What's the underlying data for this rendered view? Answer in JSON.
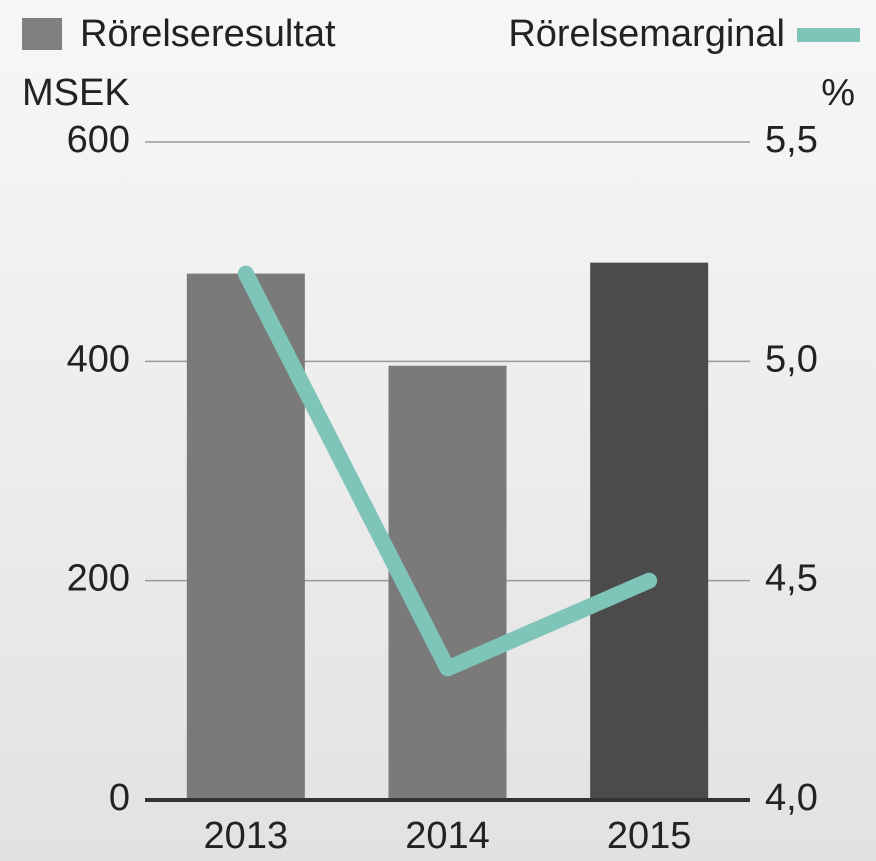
{
  "chart_data": {
    "type": "bar",
    "categories": [
      "2013",
      "2014",
      "2015"
    ],
    "y_label": "MSEK",
    "y2_label": "%",
    "series": [
      {
        "name": "Rörelseresultat",
        "type": "bar",
        "color": "#808080",
        "colors": [
          "#7a7a7a",
          "#7a7a7a",
          "#4b4b4b"
        ],
        "values": [
          480,
          396,
          490
        ]
      },
      {
        "name": "Rörelsemarginal",
        "type": "line",
        "axis": "y2",
        "color": "#7fc4b8",
        "values": [
          5.2,
          4.3,
          4.5
        ]
      }
    ],
    "ylim": [
      0,
      600
    ],
    "yticks": [
      0,
      200,
      400,
      600
    ],
    "y2lim": [
      4.0,
      5.5
    ],
    "y2ticks": [
      {
        "value": 4.0,
        "label": "4,0"
      },
      {
        "value": 4.5,
        "label": "4,5"
      },
      {
        "value": 5.0,
        "label": "5,0"
      },
      {
        "value": 5.5,
        "label": "5,5"
      }
    ],
    "grid": true
  }
}
